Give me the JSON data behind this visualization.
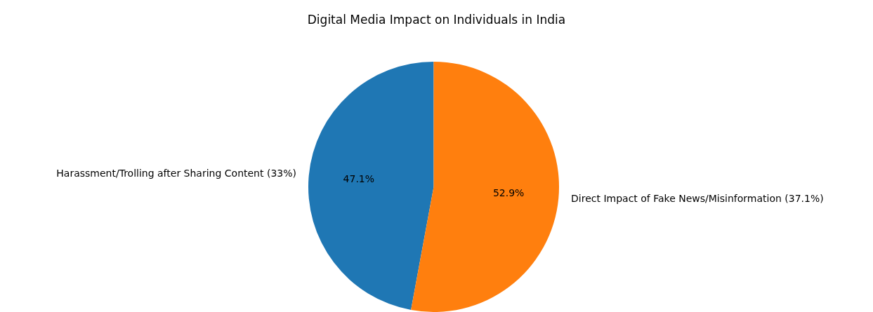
{
  "chart_data": {
    "type": "pie",
    "title": "Digital Media Impact on Individuals in India",
    "categories": [
      "Harassment/Trolling after Sharing Content (33%)",
      "Direct Impact of Fake News/Misinformation (37.1%)"
    ],
    "values": [
      47.1,
      52.9
    ],
    "colors": [
      "#1f77b4",
      "#ff7f0e"
    ],
    "value_labels": [
      "47.1%",
      "52.9%"
    ],
    "legend": false
  }
}
